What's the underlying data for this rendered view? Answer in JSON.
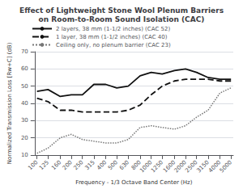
{
  "chart_data": {
    "type": "line",
    "title": "Effect of Lightweight Stone Wool Plenum Barriers\non Room-to-Room Sound Isolation (CAC)",
    "xlabel": "Frequency - 1/3 Octave Band Center (Hz)",
    "ylabel": "Normalized Transmission Loss [Rw+C] (dB)",
    "x": [
      100,
      125,
      160,
      200,
      250,
      315,
      400,
      500,
      630,
      800,
      1000,
      1250,
      1600,
      2000,
      2500,
      3150,
      4000,
      5000
    ],
    "xlim": [
      95.49925860214358,
      5235.642740254498
    ],
    "xticks": [
      100,
      125,
      160,
      200,
      250,
      315,
      400,
      500,
      630,
      800,
      1000,
      1250,
      1600,
      2000,
      2500,
      3150,
      4000,
      5000
    ],
    "log": "x",
    "ylim": [
      10,
      70
    ],
    "yticks": [
      10,
      20,
      30,
      40,
      50,
      60,
      70
    ],
    "grid": true,
    "legend": "upper left",
    "series": [
      {
        "name": "2 layers, 38 mm (1-1/2 inches) (CAC 52)",
        "color": "#111111",
        "line_style": "solid",
        "values": [
          47,
          48,
          44,
          45,
          45,
          51,
          51,
          49,
          50,
          56,
          58,
          57,
          59,
          60,
          58,
          55,
          54,
          54
        ]
      },
      {
        "name": "1 layer, 38 mm (1-1/2 inches) (CAC 40)",
        "color": "#111111",
        "line_style": "dashed",
        "values": [
          43,
          41,
          36,
          36,
          35,
          35,
          35,
          35,
          36,
          39,
          45,
          50,
          53,
          54,
          54,
          54,
          53,
          53
        ]
      },
      {
        "name": "Ceiling only, no plenum barrier (CAC 23)",
        "color": "#777777",
        "line_style": "dotted",
        "values": [
          11,
          14,
          20,
          22,
          19,
          18,
          17,
          17,
          19,
          26,
          27,
          26,
          25,
          27,
          32,
          36,
          46,
          49
        ]
      }
    ]
  }
}
